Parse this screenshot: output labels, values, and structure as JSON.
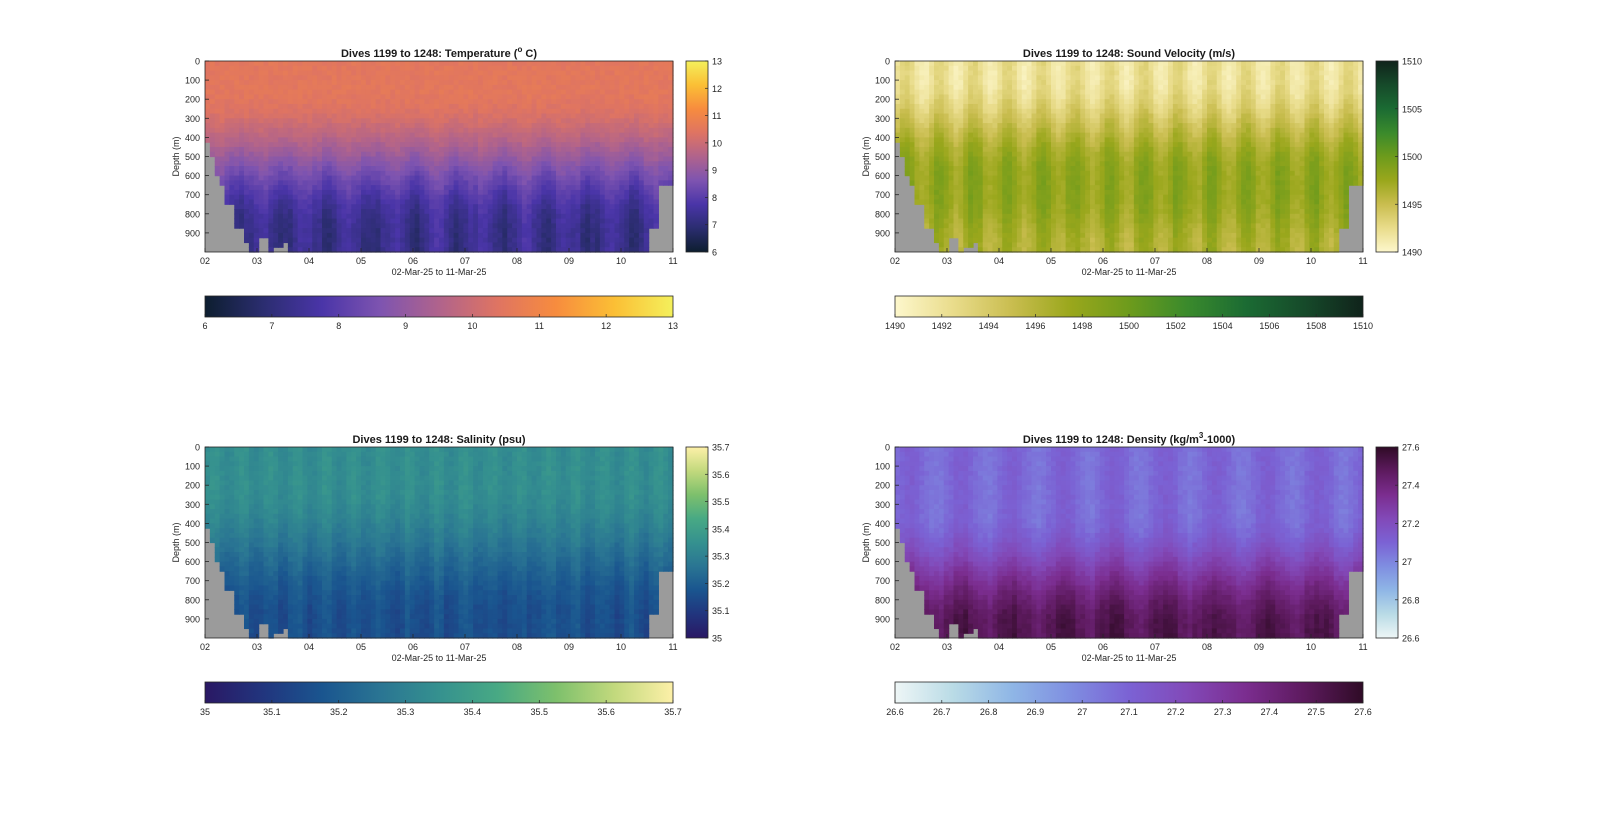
{
  "figure": {
    "panels": [
      {
        "id": "temperature",
        "title_main": "Dives 1199 to 1248: Temperature (",
        "title_sup": "o",
        "title_tail": " C)",
        "vmin": 6,
        "vmax": 13,
        "stops": [
          "#0d1e2f",
          "#2b2d70",
          "#4a35a8",
          "#7e54b0",
          "#b0638c",
          "#df7462",
          "#f78c3e",
          "#fbbf35",
          "#f4f05c"
        ],
        "colorbar_ticks": [
          "13",
          "12",
          "11",
          "10",
          "9",
          "8",
          "7",
          "6"
        ],
        "hbar_ticks": [
          "6",
          "7",
          "8",
          "9",
          "10",
          "11",
          "12",
          "13"
        ]
      },
      {
        "id": "sound-velocity",
        "title_main": "Dives 1199 to 1248: Sound Velocity (m/s)",
        "title_sup": "",
        "title_tail": "",
        "vmin": 1490,
        "vmax": 1510,
        "stops": [
          "#fdf7cc",
          "#e9dc8b",
          "#c9bd4f",
          "#9aa71c",
          "#6d9b1c",
          "#3a8a2c",
          "#1b6b33",
          "#164a2a",
          "#10231b"
        ],
        "colorbar_ticks": [
          "1510",
          "1505",
          "1500",
          "1495",
          "1490"
        ],
        "hbar_ticks": [
          "1490",
          "1492",
          "1494",
          "1496",
          "1498",
          "1500",
          "1502",
          "1504",
          "1506",
          "1508",
          "1510"
        ]
      },
      {
        "id": "salinity",
        "title_main": "Dives 1199 to 1248: Salinity (psu)",
        "title_sup": "",
        "title_tail": "",
        "vmin": 35,
        "vmax": 35.7,
        "stops": [
          "#2a1864",
          "#21357e",
          "#1a558f",
          "#2a7593",
          "#35918f",
          "#48a984",
          "#7dc06c",
          "#c2d97d",
          "#fdf0a8"
        ],
        "colorbar_ticks": [
          "35.7",
          "35.6",
          "35.5",
          "35.4",
          "35.3",
          "35.2",
          "35.1",
          "35"
        ],
        "hbar_ticks": [
          "35",
          "35.1",
          "35.2",
          "35.3",
          "35.4",
          "35.5",
          "35.6",
          "35.7"
        ]
      },
      {
        "id": "density",
        "title_main": "Dives 1199 to 1248: Density (kg/m",
        "title_sup": "3",
        "title_tail": "-1000)",
        "vmin": 26.6,
        "vmax": 27.6,
        "stops": [
          "#eef6f6",
          "#b9dbe6",
          "#8fb6e6",
          "#7f8ee1",
          "#7b62d4",
          "#8249b8",
          "#7b2d8f",
          "#5d1a5e",
          "#2f0b26"
        ],
        "colorbar_ticks": [
          "27.6",
          "27.4",
          "27.2",
          "27",
          "26.8",
          "26.6"
        ],
        "hbar_ticks": [
          "26.6",
          "26.7",
          "26.8",
          "26.9",
          "27",
          "27.1",
          "27.2",
          "27.3",
          "27.4",
          "27.5",
          "27.6"
        ]
      }
    ],
    "depth_ticks": [
      "0",
      "100",
      "200",
      "300",
      "400",
      "500",
      "600",
      "700",
      "800",
      "900"
    ],
    "day_ticks": [
      "02",
      "03",
      "04",
      "05",
      "06",
      "07",
      "08",
      "09",
      "10",
      "11"
    ],
    "ylabel": "Depth (m)",
    "xlabel": "02-Mar-25 to 11-Mar-25",
    "nodata_color": "#9b9b9b"
  },
  "chart_data": [
    {
      "type": "heatmap",
      "title": "Dives 1199 to 1248: Temperature (o C)",
      "xlabel": "02-Mar-25 to 11-Mar-25",
      "ylabel": "Depth (m)",
      "x_ticks": [
        "02",
        "03",
        "04",
        "05",
        "06",
        "07",
        "08",
        "09",
        "10",
        "11"
      ],
      "ylim": [
        0,
        1000
      ],
      "color_range": [
        6,
        13
      ],
      "surface_value": 10.5,
      "deep_value": 7.2,
      "colorbar_location": "right and bottom"
    },
    {
      "type": "heatmap",
      "title": "Dives 1199 to 1248: Sound Velocity (m/s)",
      "xlabel": "02-Mar-25 to 11-Mar-25",
      "ylabel": "Depth (m)",
      "x_ticks": [
        "02",
        "03",
        "04",
        "05",
        "06",
        "07",
        "08",
        "09",
        "10",
        "11"
      ],
      "ylim": [
        0,
        1000
      ],
      "color_range": [
        1490,
        1510
      ],
      "surface_value": 1492,
      "deep_value": 1497,
      "colorbar_location": "right and bottom"
    },
    {
      "type": "heatmap",
      "title": "Dives 1199 to 1248: Salinity (psu)",
      "xlabel": "02-Mar-25 to 11-Mar-25",
      "ylabel": "Depth (m)",
      "x_ticks": [
        "02",
        "03",
        "04",
        "05",
        "06",
        "07",
        "08",
        "09",
        "10",
        "11"
      ],
      "ylim": [
        0,
        1000
      ],
      "color_range": [
        35,
        35.7
      ],
      "surface_value": 35.33,
      "deep_value": 35.15,
      "colorbar_location": "right and bottom"
    },
    {
      "type": "heatmap",
      "title": "Dives 1199 to 1248: Density (kg/m3-1000)",
      "xlabel": "02-Mar-25 to 11-Mar-25",
      "ylabel": "Depth (m)",
      "x_ticks": [
        "02",
        "03",
        "04",
        "05",
        "06",
        "07",
        "08",
        "09",
        "10",
        "11"
      ],
      "ylim": [
        0,
        1000
      ],
      "color_range": [
        26.6,
        27.6
      ],
      "surface_value": 27.1,
      "deep_value": 27.48,
      "colorbar_location": "right and bottom"
    }
  ]
}
